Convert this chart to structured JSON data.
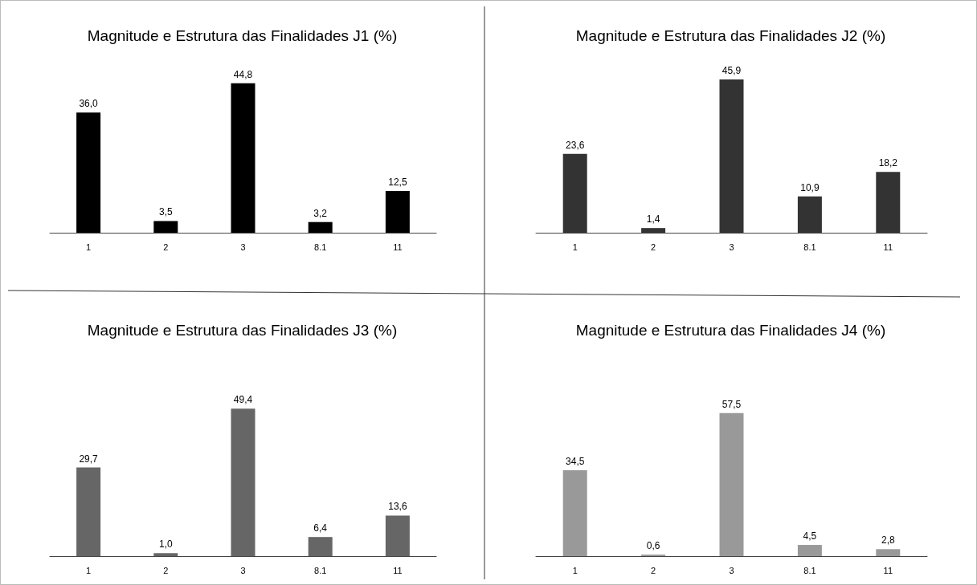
{
  "chart_data": [
    {
      "type": "bar",
      "title": "Magnitude e Estrutura das Finalidades J1 (%)",
      "categories": [
        "1",
        "2",
        "3",
        "8.1",
        "11"
      ],
      "values": [
        36.0,
        3.5,
        44.8,
        3.2,
        12.5
      ],
      "value_labels": [
        "36,0",
        "3,5",
        "44,8",
        "3,2",
        "12,5"
      ],
      "color": "#000000"
    },
    {
      "type": "bar",
      "title": "Magnitude e Estrutura das Finalidades J2 (%)",
      "categories": [
        "1",
        "2",
        "3",
        "8.1",
        "11"
      ],
      "values": [
        23.6,
        1.4,
        45.9,
        10.9,
        18.2
      ],
      "value_labels": [
        "23,6",
        "1,4",
        "45,9",
        "10,9",
        "18,2"
      ],
      "color": "#333333"
    },
    {
      "type": "bar",
      "title": "Magnitude e Estrutura das Finalidades J3 (%)",
      "categories": [
        "1",
        "2",
        "3",
        "8.1",
        "11"
      ],
      "values": [
        29.7,
        1.0,
        49.4,
        6.4,
        13.6
      ],
      "value_labels": [
        "29,7",
        "1,0",
        "49,4",
        "6,4",
        "13,6"
      ],
      "color": "#666666"
    },
    {
      "type": "bar",
      "title": "Magnitude e Estrutura das Finalidades J4 (%)",
      "categories": [
        "1",
        "2",
        "3",
        "8.1",
        "11"
      ],
      "values": [
        34.5,
        0.6,
        57.5,
        4.5,
        2.8
      ],
      "value_labels": [
        "34,5",
        "0,6",
        "57,5",
        "4,5",
        "2,8"
      ],
      "color": "#999999"
    }
  ]
}
